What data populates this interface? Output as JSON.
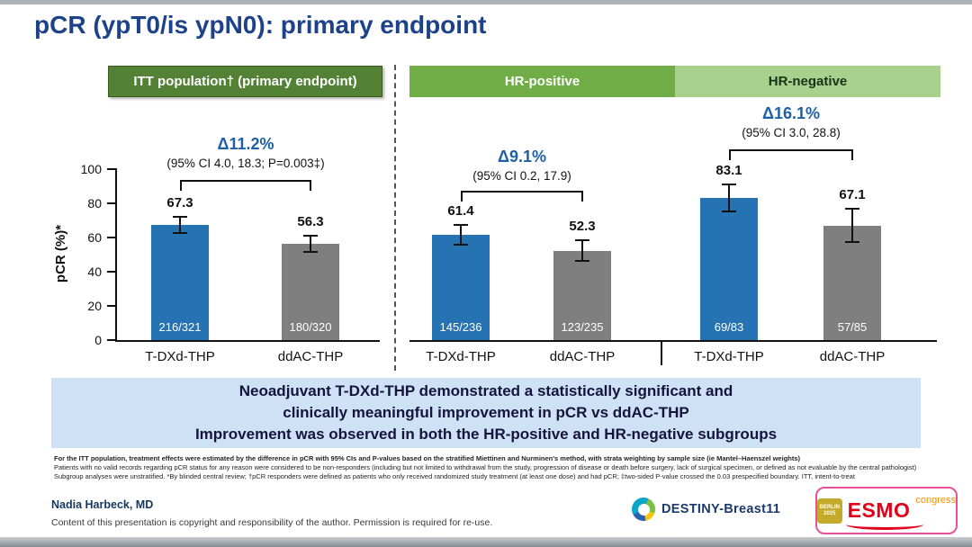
{
  "title": "pCR (ypT0/is ypN0): primary endpoint",
  "headers": {
    "itt": "ITT population† (primary endpoint)",
    "hr_positive": "HR-positive",
    "hr_negative": "HR-negative"
  },
  "colors": {
    "title_blue": "#1d4289",
    "dark_green": "#538135",
    "mid_green": "#70ad47",
    "light_green": "#a9d18e",
    "bar_blue": "#2673b4",
    "bar_gray": "#7f7f7f",
    "delta_blue": "#1f5fa8",
    "banner_bg": "#cfe1f5",
    "esmo_red": "#e2001a",
    "congress_orange": "#f39200"
  },
  "chart_data": {
    "type": "bar",
    "ylabel": "pCR (%)*",
    "ylim": [
      0,
      100
    ],
    "yticks": [
      0,
      20,
      40,
      60,
      80,
      100
    ],
    "grid": false,
    "charts": [
      {
        "panel": "ITT population† (primary endpoint)",
        "categories": [
          "T-DXd-THP",
          "ddAC-THP"
        ],
        "values": [
          67.3,
          56.3
        ],
        "errors": [
          5.2,
          5.5
        ],
        "fractions": [
          "216/321",
          "180/320"
        ],
        "bar_colors": [
          "bar_blue",
          "bar_gray"
        ],
        "delta": "Δ11.2%",
        "ci": "(95% CI 4.0, 18.3; P=0.003‡)"
      },
      {
        "panel": "HR-positive",
        "categories": [
          "T-DXd-THP",
          "ddAC-THP"
        ],
        "values": [
          61.4,
          52.3
        ],
        "errors": [
          6.3,
          6.5
        ],
        "fractions": [
          "145/236",
          "123/235"
        ],
        "bar_colors": [
          "bar_blue",
          "bar_gray"
        ],
        "delta": "Δ9.1%",
        "ci": "(95% CI 0.2, 17.9)"
      },
      {
        "panel": "HR-negative",
        "categories": [
          "T-DXd-THP",
          "ddAC-THP"
        ],
        "values": [
          83.1,
          67.1
        ],
        "errors": [
          8.5,
          10.1
        ],
        "fractions": [
          "69/83",
          "57/85"
        ],
        "bar_colors": [
          "bar_blue",
          "bar_gray"
        ],
        "delta": "Δ16.1%",
        "ci": "(95% CI 3.0, 28.8)"
      }
    ]
  },
  "banner": {
    "line1": "Neoadjuvant T-DXd-THP demonstrated a statistically significant and",
    "line2": "clinically meaningful improvement in pCR vs ddAC-THP",
    "line3": "Improvement was observed in both the HR-positive and HR-negative subgroups"
  },
  "footnotes": [
    "For the ITT population, treatment effects were estimated by the difference in pCR with 95% CIs and P-values based on the stratified Miettinen and Nurminen's method, with strata weighting by sample size (ie Mantel–Haenszel weights)",
    "Patients with no valid records regarding pCR status for any reason were considered to be non-responders (including but not limited to withdrawal from the study, progression of disease or death before surgery, lack of surgical specimen, or defined as not evaluable by the central pathologist)",
    "Subgroup analyses were unstratified. *By blinded central review; †pCR responders were defined as patients who only received randomized study treatment (at least one dose) and had pCR; ‡two-sided P-value crossed the 0.03 prespecified boundary. ITT, intent-to-treat"
  ],
  "footer": {
    "author": "Nadia Harbeck, MD",
    "copyright": "Content of this presentation is copyright and responsibility of the author. Permission is required for re-use.",
    "trial_logo": "DESTINY-Breast11",
    "esmo": {
      "city": "BERLIN",
      "year": "2025",
      "name": "ESMO",
      "suffix": "congress"
    }
  }
}
